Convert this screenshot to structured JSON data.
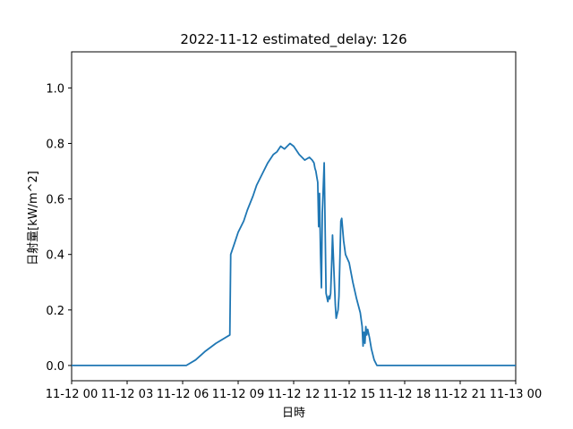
{
  "chart_data": {
    "type": "line",
    "title": "2022-11-12 estimated_delay: 126",
    "xlabel": "日時",
    "ylabel": "日射量[kW/m^2]",
    "xlim": [
      0,
      24
    ],
    "ylim": [
      -0.055,
      1.13
    ],
    "x_ticks": [
      {
        "value": 0,
        "label": "11-12 00"
      },
      {
        "value": 3,
        "label": "11-12 03"
      },
      {
        "value": 6,
        "label": "11-12 06"
      },
      {
        "value": 9,
        "label": "11-12 09"
      },
      {
        "value": 12,
        "label": "11-12 12"
      },
      {
        "value": 15,
        "label": "11-12 15"
      },
      {
        "value": 18,
        "label": "11-12 18"
      },
      {
        "value": 21,
        "label": "11-12 21"
      },
      {
        "value": 24,
        "label": "11-13 00"
      }
    ],
    "y_ticks": [
      {
        "value": 0.0,
        "label": "0.0"
      },
      {
        "value": 0.2,
        "label": "0.2"
      },
      {
        "value": 0.4,
        "label": "0.4"
      },
      {
        "value": 0.6,
        "label": "0.6"
      },
      {
        "value": 0.8,
        "label": "0.8"
      },
      {
        "value": 1.0,
        "label": "1.0"
      }
    ],
    "grid": false,
    "line_color": "#1f77b4",
    "series": [
      {
        "x": [
          0,
          3,
          5.5,
          6.2,
          6.7,
          7.2,
          7.8,
          8.55,
          8.6,
          8.8,
          9.0,
          9.3,
          9.5,
          9.8,
          10.0,
          10.3,
          10.6,
          10.9,
          11.1,
          11.3,
          11.5,
          11.8,
          12.0,
          12.1,
          12.3,
          12.6,
          12.85,
          13.0,
          13.1,
          13.15,
          13.2,
          13.25,
          13.3,
          13.35,
          13.4,
          13.45,
          13.5,
          13.55,
          13.65,
          13.75,
          13.85,
          13.9,
          13.95,
          14.0,
          14.05,
          14.1,
          14.2,
          14.25,
          14.3,
          14.4,
          14.45,
          14.5,
          14.55,
          14.6,
          14.7,
          14.8,
          15.0,
          15.2,
          15.4,
          15.6,
          15.7,
          15.75,
          15.8,
          15.85,
          15.9,
          15.95,
          16.0,
          16.1,
          16.2,
          16.35,
          16.5,
          16.7,
          17.0,
          20.0,
          24.0
        ],
        "y": [
          0.0,
          0.0,
          0.0,
          0.0,
          0.02,
          0.05,
          0.08,
          0.11,
          0.4,
          0.44,
          0.48,
          0.52,
          0.56,
          0.61,
          0.65,
          0.69,
          0.73,
          0.76,
          0.77,
          0.79,
          0.78,
          0.8,
          0.79,
          0.78,
          0.76,
          0.74,
          0.75,
          0.74,
          0.73,
          0.71,
          0.7,
          0.68,
          0.66,
          0.5,
          0.62,
          0.4,
          0.28,
          0.55,
          0.73,
          0.26,
          0.23,
          0.25,
          0.24,
          0.26,
          0.36,
          0.47,
          0.3,
          0.22,
          0.17,
          0.2,
          0.25,
          0.39,
          0.52,
          0.53,
          0.45,
          0.4,
          0.37,
          0.3,
          0.24,
          0.19,
          0.14,
          0.07,
          0.12,
          0.08,
          0.14,
          0.11,
          0.13,
          0.1,
          0.06,
          0.02,
          0.0,
          0.0,
          0.0,
          0.0,
          0.0
        ]
      }
    ]
  }
}
